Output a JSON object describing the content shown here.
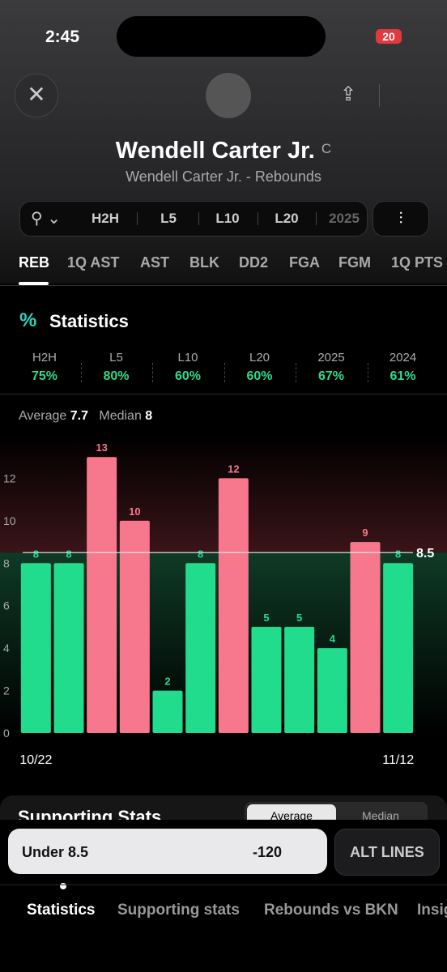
{
  "status": {
    "time": "2:45",
    "battery": "20"
  },
  "player": {
    "name": "Wendell Carter Jr.",
    "position": "C",
    "subtitle": "Wendell Carter Jr. - Rebounds"
  },
  "filters": [
    "H2H",
    "L5",
    "L10",
    "L20",
    "2025"
  ],
  "stat_tabs": [
    "REB",
    "1Q AST",
    "AST",
    "BLK",
    "DD2",
    "FGA",
    "FGM",
    "1Q PTS"
  ],
  "section_title": "Statistics",
  "hit_rates": [
    {
      "label": "H2H",
      "value": "75%"
    },
    {
      "label": "L5",
      "value": "80%"
    },
    {
      "label": "L10",
      "value": "60%"
    },
    {
      "label": "L20",
      "value": "60%"
    },
    {
      "label": "2025",
      "value": "67%"
    },
    {
      "label": "2024",
      "value": "61%"
    }
  ],
  "summary": {
    "average_label": "Average",
    "average": "7.7",
    "median_label": "Median",
    "median": "8"
  },
  "chart_data": {
    "type": "bar",
    "categories": [
      "10/22",
      null,
      null,
      null,
      null,
      null,
      null,
      null,
      null,
      null,
      null,
      "11/12"
    ],
    "values": [
      8,
      8,
      13,
      10,
      2,
      8,
      12,
      5,
      5,
      4,
      9,
      8
    ],
    "line": 8.5,
    "over_color": "#f7788c",
    "under_color": "#22dc8e",
    "ylim": [
      0,
      14
    ],
    "yticks": [
      0,
      2,
      4,
      6,
      8,
      10,
      12
    ]
  },
  "supporting": {
    "title": "Supporting Stats",
    "toggle": [
      "Average",
      "Median"
    ]
  },
  "bet": {
    "label": "Under 8.5",
    "odds": "-120",
    "alt": "ALT LINES"
  },
  "bottom_tabs": [
    "Statistics",
    "Supporting stats",
    "Rebounds vs BKN",
    "Insights"
  ]
}
